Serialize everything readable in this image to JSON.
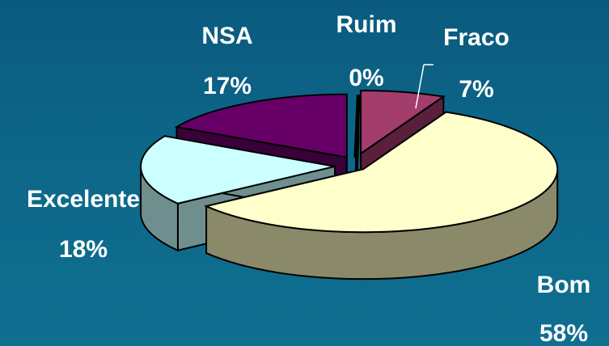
{
  "chart_data": {
    "type": "pie",
    "style": "3d-exploded",
    "categories": [
      "Ruim",
      "Fraco",
      "Bom",
      "Excelente",
      "NSA"
    ],
    "values": [
      0,
      7,
      58,
      18,
      17
    ],
    "value_labels": [
      "0%",
      "7%",
      "58%",
      "18%",
      "17%"
    ],
    "colors": [
      "#1a1a1a",
      "#a23d6c",
      "#ffffcc",
      "#ccffff",
      "#660066"
    ],
    "side_colors": [
      "#0a0a0a",
      "#5a1f3a",
      "#8a8a6a",
      "#6f8f8f",
      "#3a003a"
    ],
    "title": "",
    "legend": "none"
  }
}
